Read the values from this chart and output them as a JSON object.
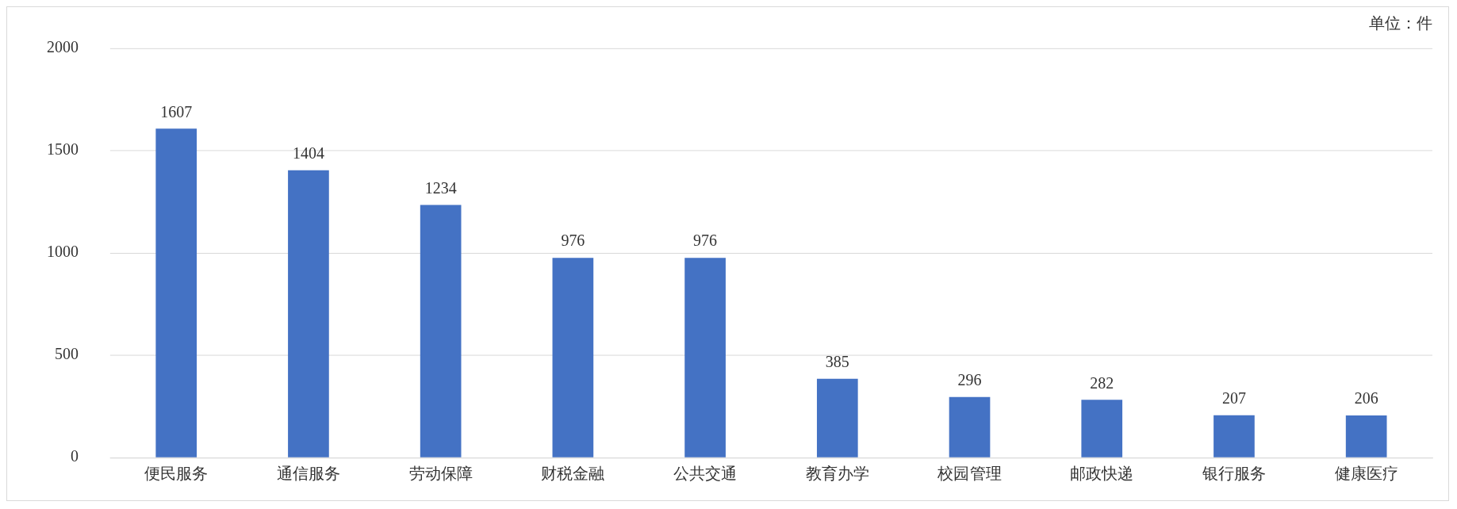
{
  "chart_data": {
    "type": "bar",
    "categories": [
      "便民服务",
      "通信服务",
      "劳动保障",
      "财税金融",
      "公共交通",
      "教育办学",
      "校园管理",
      "邮政快递",
      "银行服务",
      "健康医疗"
    ],
    "values": [
      1607,
      1404,
      1234,
      976,
      976,
      385,
      296,
      282,
      207,
      206
    ],
    "color": "#4472c4",
    "ylim": [
      0,
      2000
    ],
    "yticks": [
      0,
      500,
      1000,
      1500,
      2000
    ],
    "grid": "y",
    "data_labels": true,
    "legend": false,
    "annotations": [
      "单位：件"
    ]
  }
}
